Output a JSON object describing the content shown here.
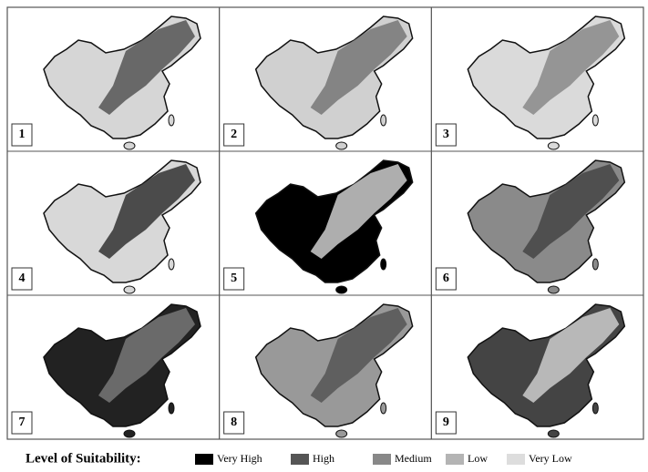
{
  "panels": [
    {
      "label": "1"
    },
    {
      "label": "2"
    },
    {
      "label": "3"
    },
    {
      "label": "4"
    },
    {
      "label": "5"
    },
    {
      "label": "6"
    },
    {
      "label": "7"
    },
    {
      "label": "8"
    },
    {
      "label": "9"
    }
  ],
  "legend": {
    "title": "Level of Suitability:",
    "items": [
      {
        "label": "Very High",
        "color": "#000000"
      },
      {
        "label": "High",
        "color": "#555555"
      },
      {
        "label": "Medium",
        "color": "#888888"
      },
      {
        "label": "Low",
        "color": "#b4b4b4"
      },
      {
        "label": "Very Low",
        "color": "#dddddd"
      }
    ]
  }
}
